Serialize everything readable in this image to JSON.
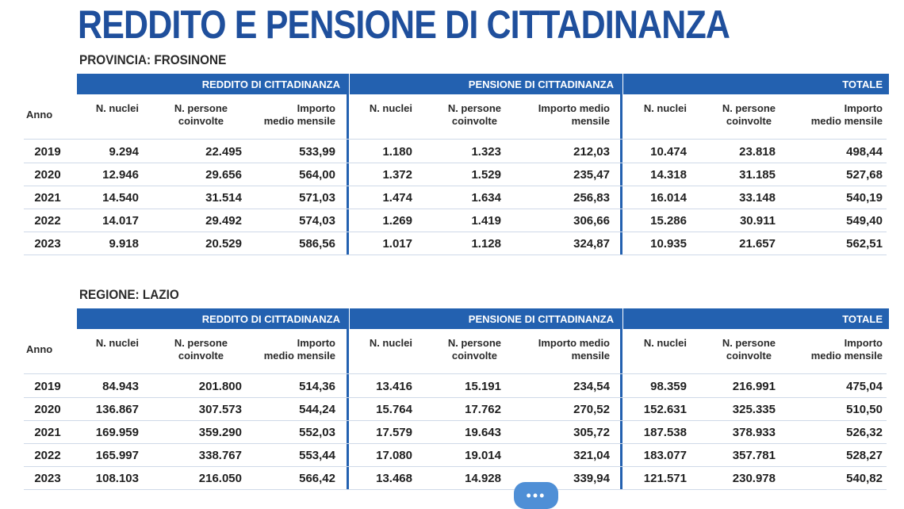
{
  "title": "REDDITO E PENSIONE DI CITTADINANZA",
  "colors": {
    "band": "#2361b0",
    "title": "#1f4f9c",
    "rule": "#cfd9e8"
  },
  "headers": {
    "reddito": "REDDITO DI CITTADINANZA",
    "pensione": "PENSIONE DI CITTADINANZA",
    "totale": "TOTALE",
    "anno": "Anno",
    "nuclei": "N. nuclei",
    "persone_1": "N. persone",
    "persone_2": "coinvolte",
    "imp_a_1": "Importo",
    "imp_a_2": "medio mensile",
    "imp_b_1": "Importo medio",
    "imp_b_2": "mensile",
    "imp_c_1": "Importo",
    "imp_c_2": "medio mensile"
  },
  "sections": [
    {
      "label": "PROVINCIA: FROSINONE",
      "rows": [
        [
          "2019",
          "9.294",
          "22.495",
          "533,99",
          "1.180",
          "1.323",
          "212,03",
          "10.474",
          "23.818",
          "498,44"
        ],
        [
          "2020",
          "12.946",
          "29.656",
          "564,00",
          "1.372",
          "1.529",
          "235,47",
          "14.318",
          "31.185",
          "527,68"
        ],
        [
          "2021",
          "14.540",
          "31.514",
          "571,03",
          "1.474",
          "1.634",
          "256,83",
          "16.014",
          "33.148",
          "540,19"
        ],
        [
          "2022",
          "14.017",
          "29.492",
          "574,03",
          "1.269",
          "1.419",
          "306,66",
          "15.286",
          "30.911",
          "549,40"
        ],
        [
          "2023",
          "9.918",
          "20.529",
          "586,56",
          "1.017",
          "1.128",
          "324,87",
          "10.935",
          "21.657",
          "562,51"
        ]
      ]
    },
    {
      "label": "REGIONE: LAZIO",
      "rows": [
        [
          "2019",
          "84.943",
          "201.800",
          "514,36",
          "13.416",
          "15.191",
          "234,54",
          "98.359",
          "216.991",
          "475,04"
        ],
        [
          "2020",
          "136.867",
          "307.573",
          "544,24",
          "15.764",
          "17.762",
          "270,52",
          "152.631",
          "325.335",
          "510,50"
        ],
        [
          "2021",
          "169.959",
          "359.290",
          "552,03",
          "17.579",
          "19.643",
          "305,72",
          "187.538",
          "378.933",
          "526,32"
        ],
        [
          "2022",
          "165.997",
          "338.767",
          "553,44",
          "17.080",
          "19.014",
          "321,04",
          "183.077",
          "357.781",
          "528,27"
        ],
        [
          "2023",
          "108.103",
          "216.050",
          "566,42",
          "13.468",
          "14.928",
          "339,94",
          "121.571",
          "230.978",
          "540,82"
        ]
      ]
    }
  ],
  "chat_bubble": {
    "icon": "chat-dots-icon",
    "glyph": "•••"
  }
}
